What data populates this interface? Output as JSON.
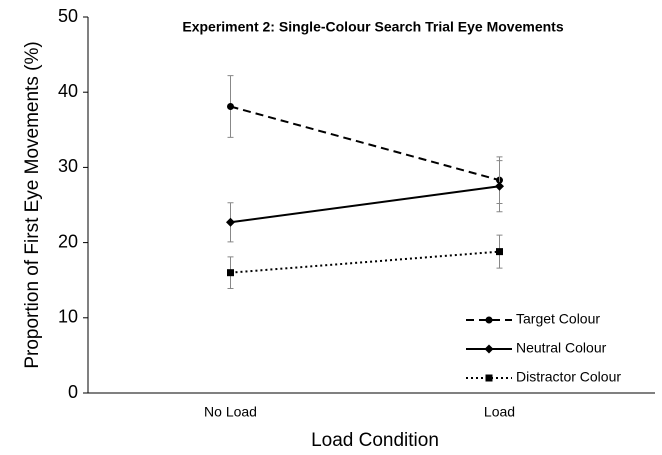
{
  "chart_data": {
    "type": "line",
    "title": "Experiment 2: Single-Colour Search Trial Eye Movements",
    "x_label": "Load Condition",
    "y_label": "Proportion of First Eye Movements (%)",
    "categories": [
      "No Load",
      "Load"
    ],
    "ylim": [
      0,
      50
    ],
    "yticks": [
      0,
      10,
      20,
      30,
      40,
      50
    ],
    "legend": "lower right",
    "series": [
      {
        "name": "Target Colour",
        "color": "#000000",
        "dash": "dashed",
        "marker": "circle",
        "values": [
          38.1,
          28.3
        ],
        "errors": [
          4.1,
          3.1
        ]
      },
      {
        "name": "Neutral Colour",
        "color": "#000000",
        "dash": "solid",
        "marker": "diamond",
        "values": [
          22.7,
          27.5
        ],
        "errors": [
          2.6,
          3.4
        ]
      },
      {
        "name": "Distractor Colour",
        "color": "#000000",
        "dash": "dotted",
        "marker": "square",
        "values": [
          16.0,
          18.8
        ],
        "errors": [
          2.1,
          2.2
        ]
      }
    ]
  }
}
